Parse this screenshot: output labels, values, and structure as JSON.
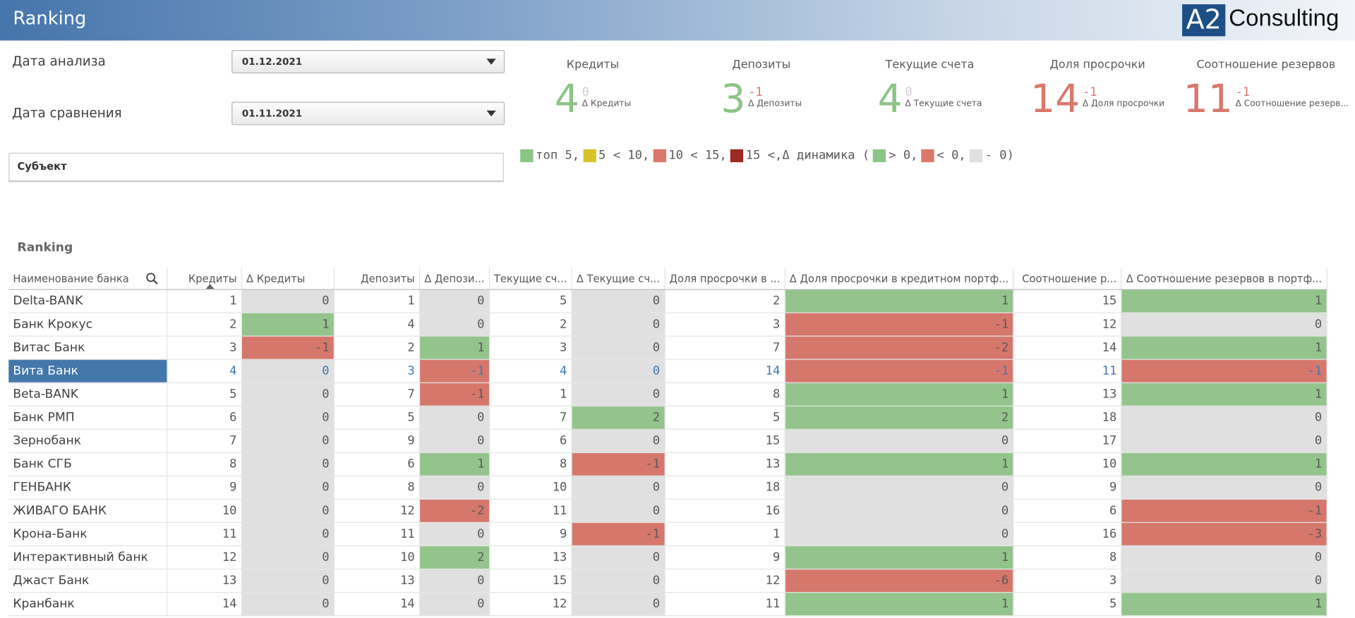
{
  "header": {
    "title": "Ranking",
    "logo_mark": "A2",
    "logo_text": "Consulting"
  },
  "filters": [
    {
      "label": "Дата анализа",
      "value": "01.12.2021"
    },
    {
      "label": "Дата сравнения",
      "value": "01.11.2021"
    }
  ],
  "subject": {
    "label": "Субъект"
  },
  "kpis": [
    {
      "title": "Кредиты",
      "value": 4,
      "delta": 0,
      "delta_label": "Δ Кредиты",
      "color": "#8cc486",
      "delta_color": "#d0d0d0"
    },
    {
      "title": "Депозиты",
      "value": 3,
      "delta": -1,
      "delta_label": "Δ Депозиты",
      "color": "#8cc486",
      "delta_color": "#d9786b"
    },
    {
      "title": "Текущие счета",
      "value": 4,
      "delta": 0,
      "delta_label": "Δ Текущие счета",
      "color": "#8cc486",
      "delta_color": "#d0d0d0"
    },
    {
      "title": "Доля просрочки",
      "value": 14,
      "delta": -1,
      "delta_label": "Δ Доля просрочки",
      "color": "#d9786b",
      "delta_color": "#d9786b"
    },
    {
      "title": "Соотношение резервов",
      "value": 11,
      "delta": -1,
      "delta_label": "Δ Соотношение резерв...",
      "color": "#d9786b",
      "delta_color": "#d9786b"
    }
  ],
  "legend": {
    "items": [
      {
        "color": "#8cc486",
        "label": "топ 5,"
      },
      {
        "color": "#d8c22a",
        "label": "5 < 10,"
      },
      {
        "color": "#d9786b",
        "label": "10 < 15,"
      },
      {
        "color": "#9b2a22",
        "label": "15 <,"
      },
      {
        "label": "Δ динамика ("
      },
      {
        "color": "#8cc486",
        "label": "> 0,"
      },
      {
        "color": "#d9786b",
        "label": "< 0,"
      },
      {
        "color": "#e0e0e0",
        "label": "- 0"
      },
      {
        "label": ")"
      }
    ]
  },
  "table": {
    "title": "Ranking",
    "positive_color": "#93c48b",
    "negative_color": "#d6776b",
    "zero_color": "#e0e0e0",
    "columns": [
      "Наименование банка",
      "Кредиты",
      "Δ Кредиты",
      "Депозиты",
      "Δ Депози...",
      "Текущие сч...",
      "Δ Текущие сч...",
      "Доля просрочки в ...",
      "Δ Доля просрочки в кредитном портф...",
      "Соотношение р...",
      "Δ Соотношение резервов в портф..."
    ],
    "rows": [
      {
        "name": "Delta-BANK",
        "values": [
          1,
          0,
          1,
          0,
          5,
          0,
          2,
          1,
          15,
          1
        ]
      },
      {
        "name": "Банк Крокус",
        "values": [
          2,
          1,
          4,
          0,
          2,
          0,
          3,
          -1,
          12,
          0
        ]
      },
      {
        "name": "Витас Банк",
        "values": [
          3,
          -1,
          2,
          1,
          3,
          0,
          7,
          -2,
          14,
          1
        ]
      },
      {
        "name": "Вита Банк",
        "values": [
          4,
          0,
          3,
          -1,
          4,
          0,
          14,
          -1,
          11,
          -1
        ],
        "selected": true
      },
      {
        "name": "Beta-BANK",
        "values": [
          5,
          0,
          7,
          -1,
          1,
          0,
          8,
          1,
          13,
          1
        ]
      },
      {
        "name": "Банк РМП",
        "values": [
          6,
          0,
          5,
          0,
          7,
          2,
          5,
          2,
          18,
          0
        ]
      },
      {
        "name": "Зернобанк",
        "values": [
          7,
          0,
          9,
          0,
          6,
          0,
          15,
          0,
          17,
          0
        ]
      },
      {
        "name": "Банк СГБ",
        "values": [
          8,
          0,
          6,
          1,
          8,
          -1,
          13,
          1,
          10,
          1
        ]
      },
      {
        "name": "ГЕНБАНК",
        "values": [
          9,
          0,
          8,
          0,
          10,
          0,
          18,
          0,
          9,
          0
        ]
      },
      {
        "name": "ЖИВАГО БАНК",
        "values": [
          10,
          0,
          12,
          -2,
          11,
          0,
          16,
          0,
          6,
          -1
        ]
      },
      {
        "name": "Крона-Банк",
        "values": [
          11,
          0,
          11,
          0,
          9,
          -1,
          1,
          0,
          16,
          -3
        ]
      },
      {
        "name": "Интерактивный банк",
        "values": [
          12,
          0,
          10,
          2,
          13,
          0,
          9,
          1,
          8,
          0
        ]
      },
      {
        "name": "Джаст Банк",
        "values": [
          13,
          0,
          13,
          0,
          15,
          0,
          12,
          -6,
          3,
          0
        ]
      },
      {
        "name": "Кранбанк",
        "values": [
          14,
          0,
          14,
          0,
          12,
          0,
          11,
          1,
          5,
          1
        ]
      }
    ]
  }
}
